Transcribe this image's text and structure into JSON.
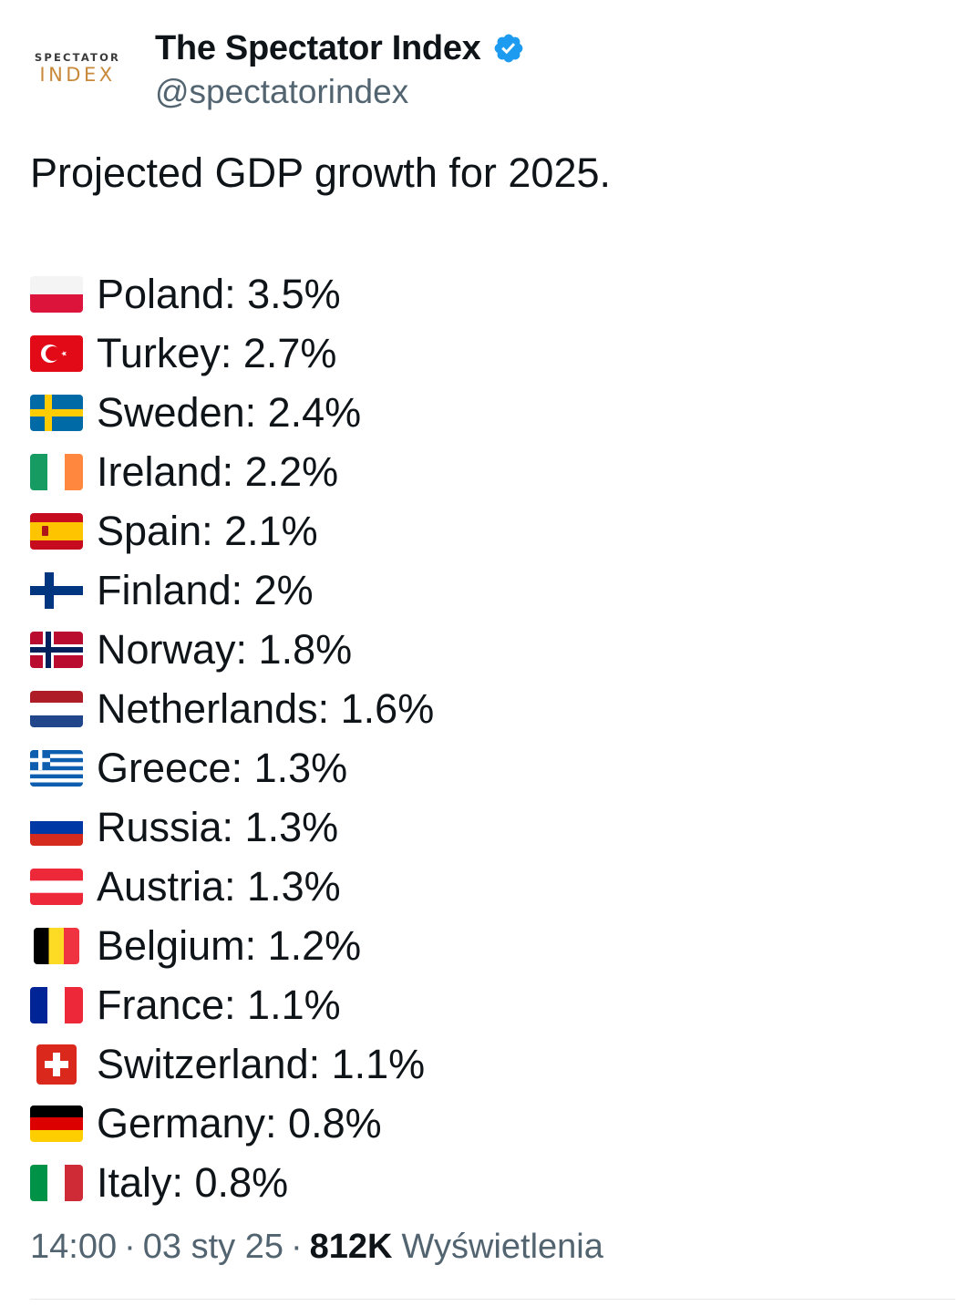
{
  "author": {
    "avatar_line1": "SPECTATOR",
    "avatar_line2": "INDEX",
    "display_name": "The Spectator Index",
    "handle": "@spectatorindex",
    "verified_badge_color": "#1d9bf0"
  },
  "tweet": {
    "headline": "Projected GDP growth for 2025.",
    "items": [
      {
        "flag": "poland-flag",
        "text": "Poland: 3.5%"
      },
      {
        "flag": "turkey-flag",
        "text": "Turkey: 2.7%"
      },
      {
        "flag": "sweden-flag",
        "text": "Sweden: 2.4%"
      },
      {
        "flag": "ireland-flag",
        "text": "Ireland: 2.2%"
      },
      {
        "flag": "spain-flag",
        "text": "Spain: 2.1%"
      },
      {
        "flag": "finland-flag",
        "text": "Finland: 2%"
      },
      {
        "flag": "norway-flag",
        "text": "Norway: 1.8%"
      },
      {
        "flag": "netherlands-flag",
        "text": "Netherlands: 1.6%"
      },
      {
        "flag": "greece-flag",
        "text": "Greece: 1.3%"
      },
      {
        "flag": "russia-flag",
        "text": "Russia: 1.3%"
      },
      {
        "flag": "austria-flag",
        "text": "Austria: 1.3%"
      },
      {
        "flag": "belgium-flag",
        "text": "Belgium: 1.2%"
      },
      {
        "flag": "france-flag",
        "text": "France: 1.1%"
      },
      {
        "flag": "switzerland-flag",
        "text": "Switzerland: 1.1%"
      },
      {
        "flag": "germany-flag",
        "text": "Germany: 0.8%"
      },
      {
        "flag": "italy-flag",
        "text": "Italy: 0.8%"
      }
    ]
  },
  "meta": {
    "time": "14:00",
    "date": "03 sty 25",
    "separator": "·",
    "views_count": "812K",
    "views_label": "Wyświetlenia"
  }
}
